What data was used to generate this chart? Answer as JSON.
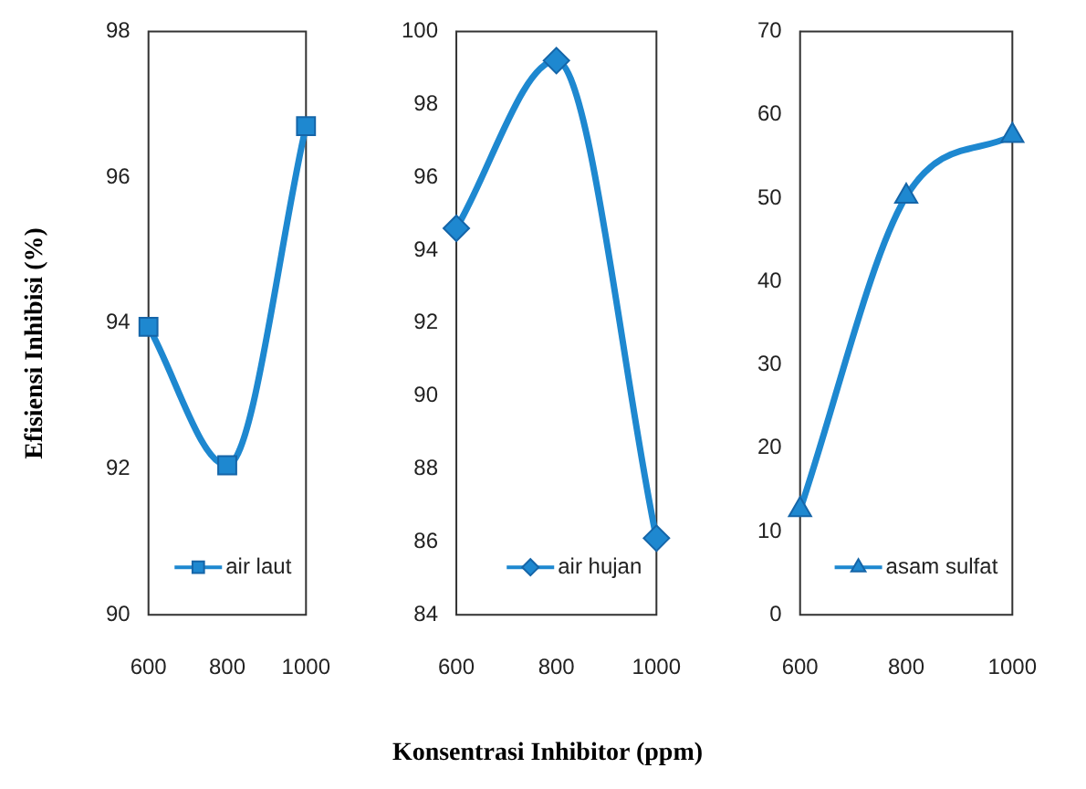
{
  "chart_data": [
    {
      "type": "line",
      "ylabel": "Efisiensi Inhibisi  (%)",
      "x": [
        600,
        800,
        1000
      ],
      "xlim": [
        600,
        1000
      ],
      "xticks": [
        600,
        800,
        1000
      ],
      "ylim": [
        90,
        98
      ],
      "yticks": [
        90,
        92,
        94,
        96,
        98
      ],
      "marker": "square",
      "legend": "bottom right",
      "grid": false,
      "series": [
        {
          "name": "air laut",
          "color": "#1e88d0",
          "values": [
            93.95,
            92.05,
            96.7
          ]
        }
      ]
    },
    {
      "type": "line",
      "xlabel": "Konsentrasi Inhibitor (ppm)",
      "x": [
        600,
        800,
        1000
      ],
      "xlim": [
        600,
        1000
      ],
      "xticks": [
        600,
        800,
        1000
      ],
      "ylim": [
        84,
        100
      ],
      "yticks": [
        84,
        86,
        88,
        90,
        92,
        94,
        96,
        98,
        100
      ],
      "marker": "diamond",
      "legend": "bottom right",
      "grid": false,
      "series": [
        {
          "name": "air hujan",
          "color": "#1e88d0",
          "values": [
            94.6,
            99.2,
            86.1
          ]
        }
      ]
    },
    {
      "type": "line",
      "x": [
        600,
        800,
        1000
      ],
      "xlim": [
        600,
        1000
      ],
      "xticks": [
        600,
        800,
        1000
      ],
      "ylim": [
        0,
        70
      ],
      "yticks": [
        0,
        10,
        20,
        30,
        40,
        50,
        60,
        70
      ],
      "marker": "triangle",
      "legend": "bottom right",
      "grid": false,
      "series": [
        {
          "name": "asam sulfat",
          "color": "#1e88d0",
          "values": [
            12.6,
            50.2,
            57.5
          ]
        }
      ]
    }
  ]
}
